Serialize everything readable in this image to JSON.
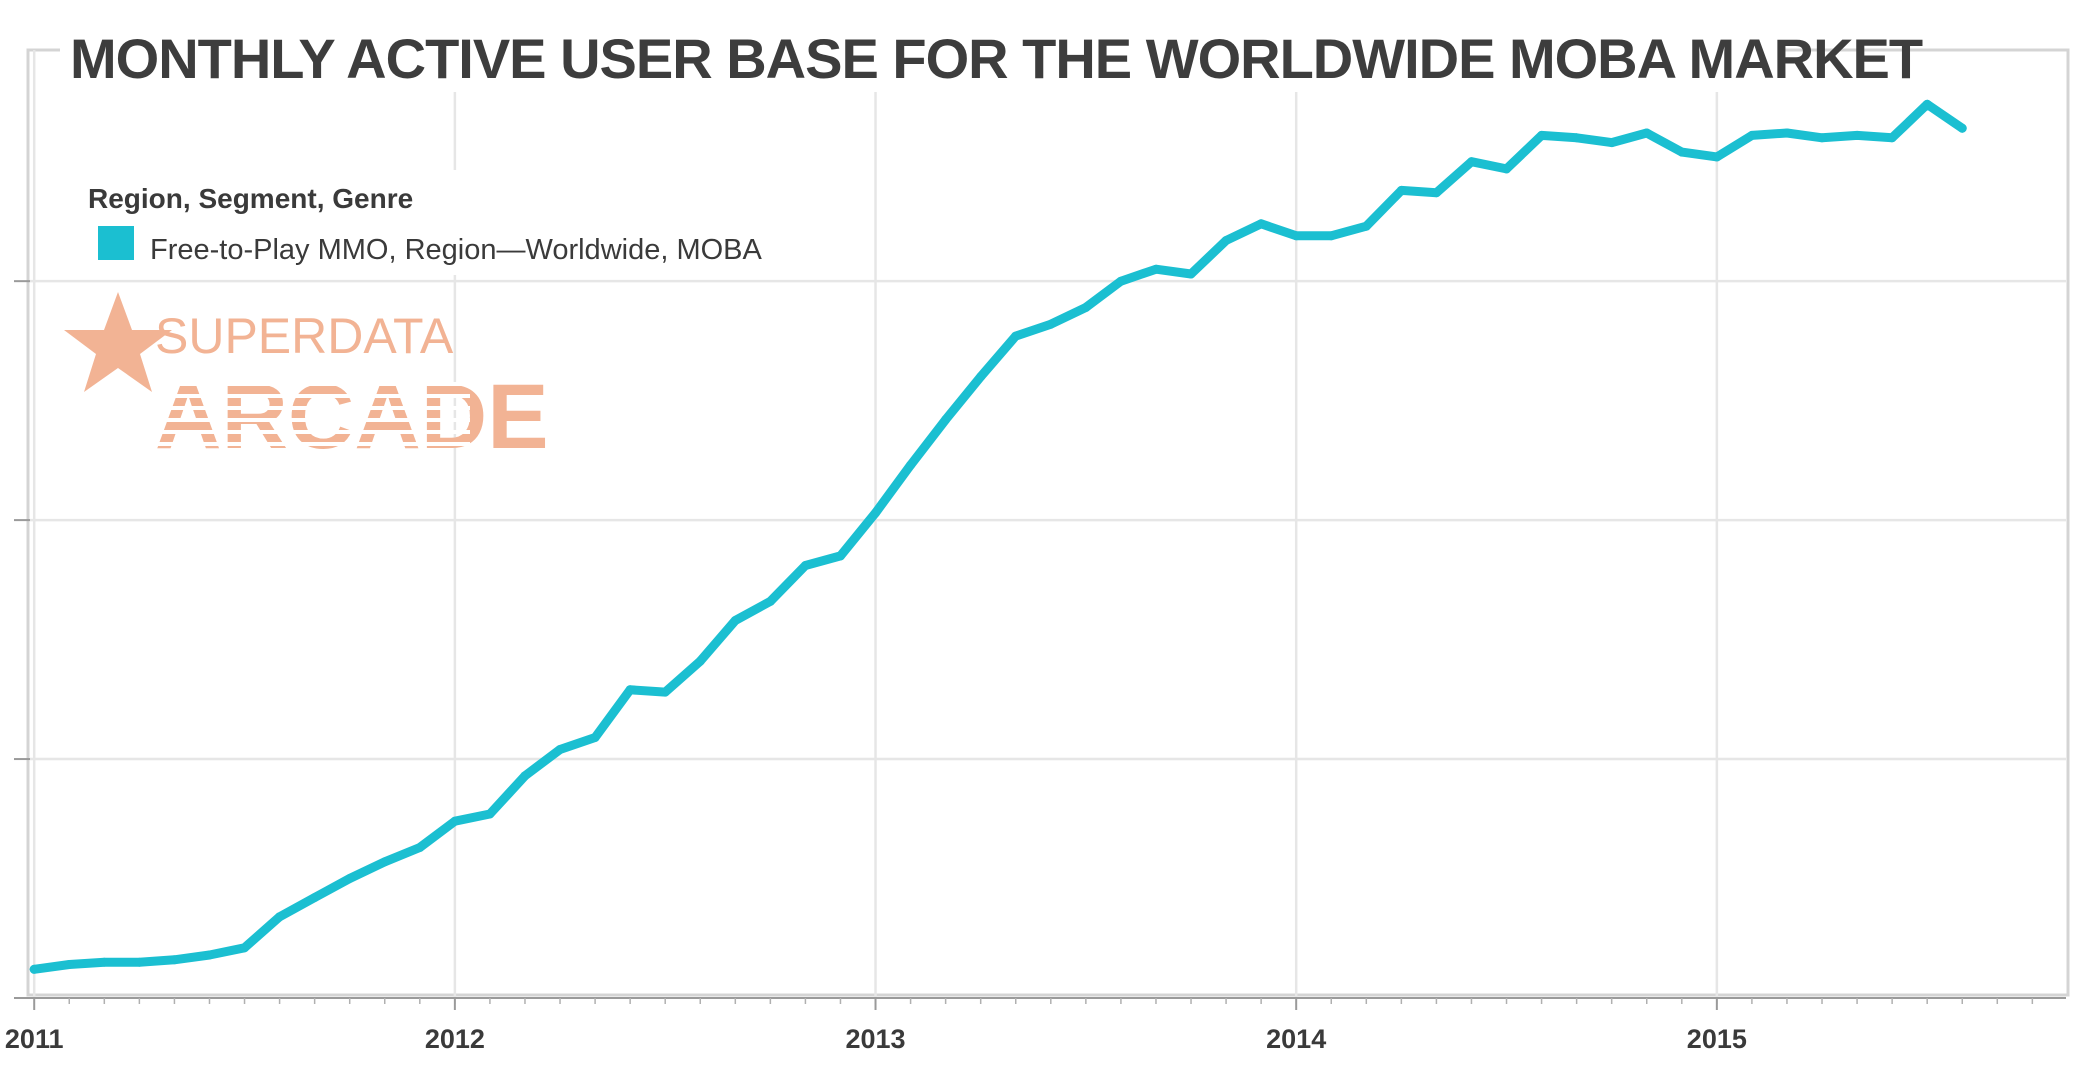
{
  "chart_data": {
    "type": "line",
    "title": "MONTHLY ACTIVE USER BASE FOR THE WORLDWIDE MOBA MARKET",
    "legend": {
      "title": "Region, Segment, Genre",
      "placement": "top-left",
      "items": [
        {
          "label": "Free-to-Play MMO, Region—Worldwide, MOBA",
          "color": "#1bbfd1"
        }
      ]
    },
    "xlabel": "",
    "ylabel": "",
    "x_tick_labels": [
      "2011",
      "2012",
      "2013",
      "2014",
      "2015"
    ],
    "xlim": [
      2010.99,
      2015.83
    ],
    "ylim": [
      0,
      3.8
    ],
    "y_gridlines": [
      0,
      1,
      2,
      3
    ],
    "y_tick_labels_visible": false,
    "grid": true,
    "series": [
      {
        "color": "#1bbfd1",
        "x": [
          "2011-01",
          "2011-02",
          "2011-03",
          "2011-04",
          "2011-05",
          "2011-06",
          "2011-07",
          "2011-08",
          "2011-09",
          "2011-10",
          "2011-11",
          "2011-12",
          "2012-01",
          "2012-02",
          "2012-03",
          "2012-04",
          "2012-05",
          "2012-06",
          "2012-07",
          "2012-08",
          "2012-09",
          "2012-10",
          "2012-11",
          "2012-12",
          "2013-01",
          "2013-02",
          "2013-03",
          "2013-04",
          "2013-05",
          "2013-06",
          "2013-07",
          "2013-08",
          "2013-09",
          "2013-10",
          "2013-11",
          "2013-12",
          "2014-01",
          "2014-02",
          "2014-03",
          "2014-04",
          "2014-05",
          "2014-06",
          "2014-07",
          "2014-08",
          "2014-09",
          "2014-10",
          "2014-11",
          "2014-12",
          "2015-01",
          "2015-02",
          "2015-03",
          "2015-04",
          "2015-05",
          "2015-06",
          "2015-07",
          "2015-08"
        ],
        "values": [
          0.12,
          0.14,
          0.15,
          0.15,
          0.16,
          0.18,
          0.21,
          0.34,
          0.42,
          0.5,
          0.57,
          0.63,
          0.74,
          0.77,
          0.93,
          1.04,
          1.09,
          1.29,
          1.28,
          1.41,
          1.58,
          1.66,
          1.81,
          1.85,
          2.03,
          2.23,
          2.42,
          2.6,
          2.77,
          2.82,
          2.89,
          3.0,
          3.05,
          3.03,
          3.17,
          3.24,
          3.19,
          3.19,
          3.23,
          3.38,
          3.37,
          3.5,
          3.47,
          3.61,
          3.6,
          3.58,
          3.62,
          3.54,
          3.52,
          3.61,
          3.62,
          3.6,
          3.61,
          3.6,
          3.74,
          3.64
        ]
      }
    ],
    "logo": {
      "line1": "SUPERDATA",
      "line2": "ARCADE",
      "color": "#f2b394"
    }
  }
}
